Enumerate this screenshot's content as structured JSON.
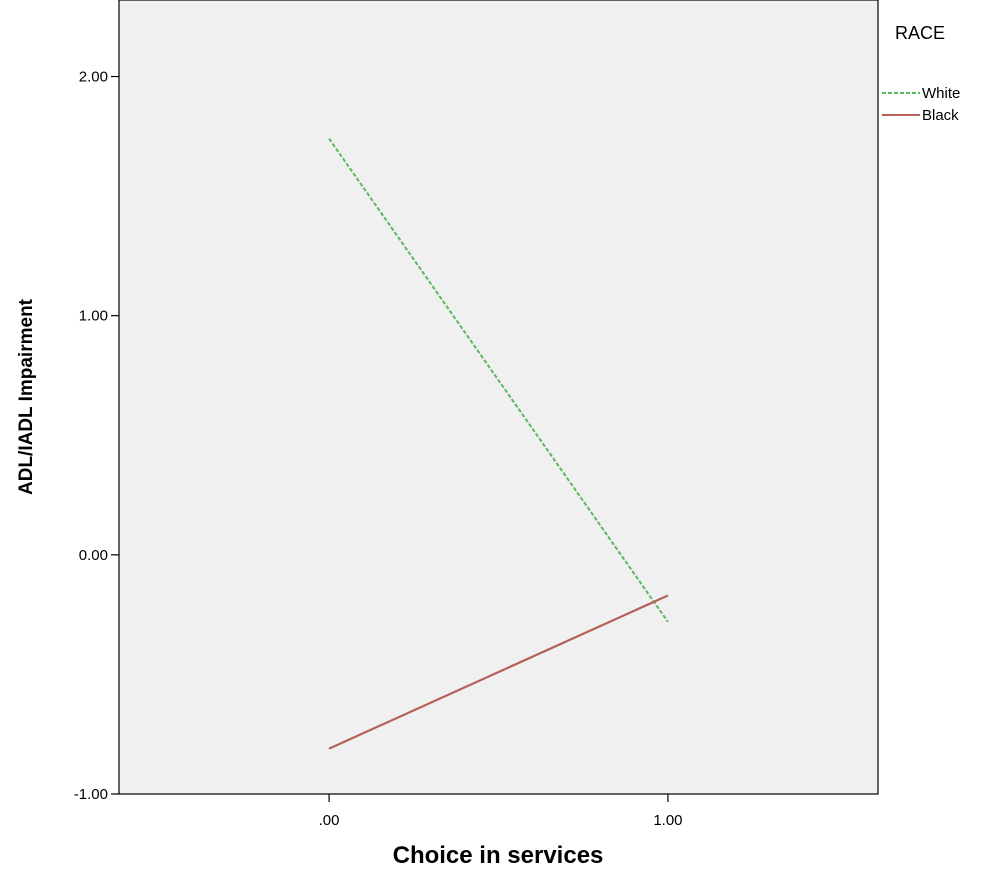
{
  "chart_data": {
    "type": "line",
    "xlabel": "Choice in services",
    "ylabel": "ADL/IADL Impairment",
    "x_ticks": [
      {
        "value": 0,
        "label": ".00"
      },
      {
        "value": 1,
        "label": "1.00"
      }
    ],
    "y_ticks": [
      {
        "value": -1,
        "label": "-1.00"
      },
      {
        "value": 0,
        "label": "0.00"
      },
      {
        "value": 1,
        "label": "1.00"
      },
      {
        "value": 2,
        "label": "2.00"
      }
    ],
    "xlim": [
      -0.62,
      1.62
    ],
    "ylim": [
      -1.0,
      2.32
    ],
    "grid": false,
    "legend": {
      "title": "RACE",
      "placement": "right"
    },
    "series": [
      {
        "name": "White",
        "color": "#5cb85c",
        "dash": "dashed",
        "x": [
          0,
          1
        ],
        "y": [
          1.74,
          -0.28
        ]
      },
      {
        "name": "Black",
        "color": "#b5605a",
        "dash": "solid",
        "x": [
          0,
          1
        ],
        "y": [
          -0.81,
          -0.17
        ]
      }
    ]
  }
}
